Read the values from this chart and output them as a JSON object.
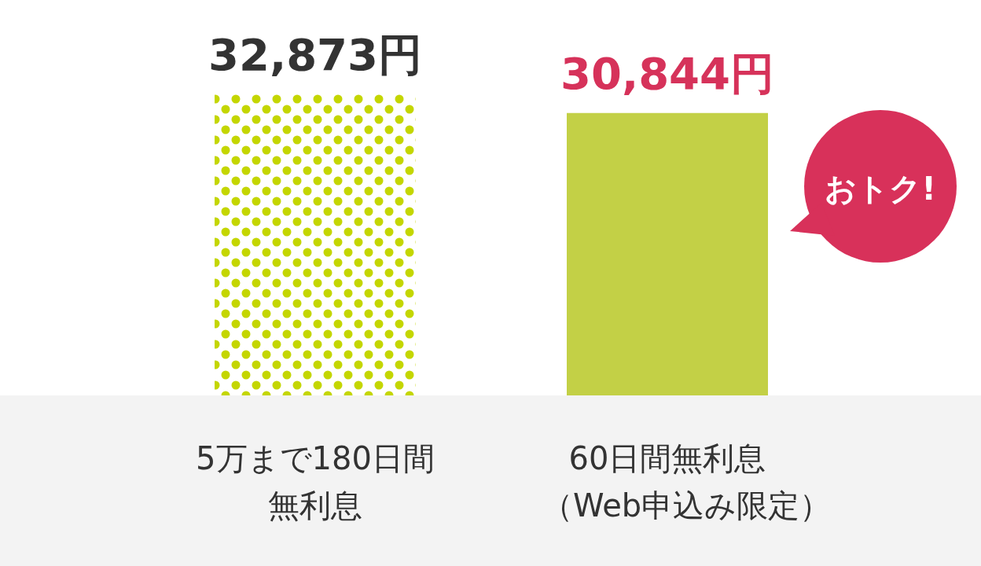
{
  "chart_data": {
    "type": "bar",
    "categories": [
      "5万まで180日間無利息",
      "60日間無利息（Web申込み限定）"
    ],
    "values": [
      32873,
      30844
    ],
    "colors": [
      "#c4d600",
      "#c3d046"
    ],
    "value_labels": [
      "32,873円",
      "30,844円"
    ],
    "annotations": [
      "おトク!"
    ],
    "tick_labels": "x"
  }
}
